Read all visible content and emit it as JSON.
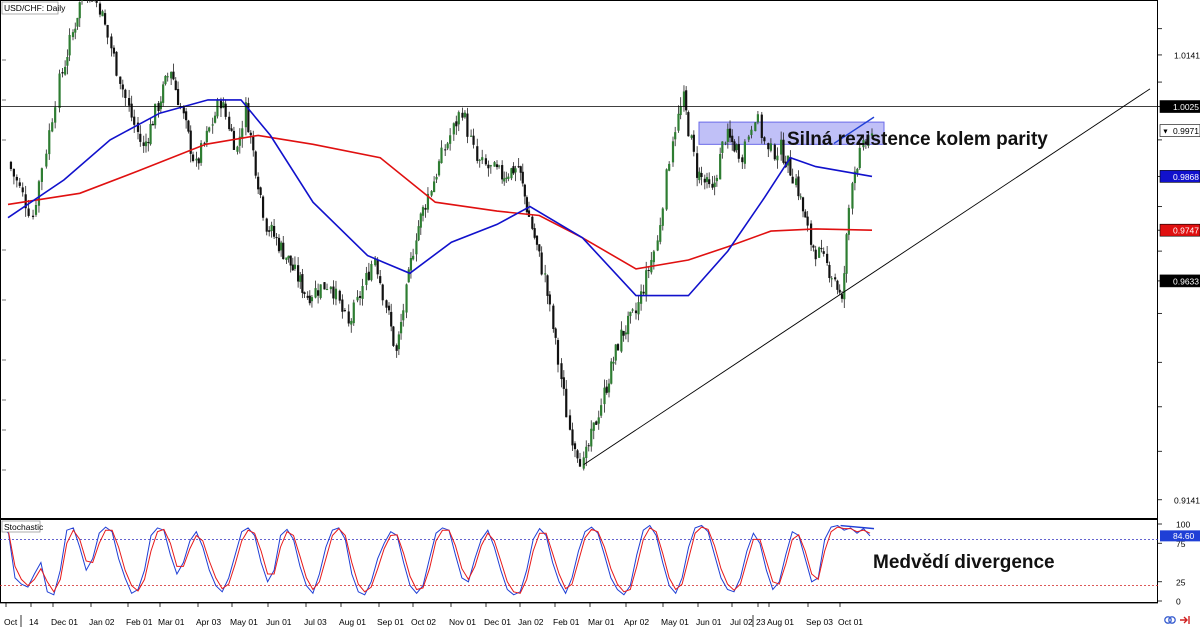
{
  "header": {
    "symbol_label": "USD/CHF: Daily"
  },
  "annotations": {
    "resistance": "Silná rezistence kolem parity",
    "divergence": "Medvědí divergence"
  },
  "colors": {
    "up_candle": "#2e7d32",
    "down_candle": "#111111",
    "sma_100": "#1111cc",
    "sma_200": "#e01010",
    "stoch_k": "#1f3fd6",
    "stoch_d": "#e81a1a",
    "resistance_zone": "#8c8cf0",
    "last_price_tag": "#000000"
  },
  "chart_data": [
    {
      "type": "candlestick",
      "title": "USD/CHF: Daily",
      "ylim": [
        0.91,
        1.026
      ],
      "price_axis_labels": [
        "1.0141",
        "1.0025",
        "0.9971",
        "0.9868",
        "0.9747",
        "0.9633",
        "0.9141"
      ],
      "price_tags": [
        {
          "label": "1.0025",
          "value": 1.0025,
          "role": "resistance",
          "color": "#000000",
          "text_color": "#ffffff"
        },
        {
          "label": "0.9971",
          "value": 0.9971,
          "role": "last price",
          "color": "#ffffff",
          "text_color": "#000000",
          "marker": "▼"
        },
        {
          "label": "0.9868",
          "value": 0.9868,
          "role": "SMA blue",
          "color": "#1111cc",
          "text_color": "#ffffff"
        },
        {
          "label": "0.9747",
          "value": 0.9747,
          "role": "SMA red",
          "color": "#e01010",
          "text_color": "#ffffff"
        },
        {
          "label": "0.9633",
          "value": 0.9633,
          "role": "support line",
          "color": "#000000",
          "text_color": "#ffffff"
        }
      ],
      "x_labels": [
        "Oct",
        "14",
        "Dec 01",
        "Jan 02",
        "Feb 01",
        "Mar 01",
        "Apr 03",
        "May 01",
        "Jun 01",
        "Jul 03",
        "Aug 01",
        "Sep 01",
        "Oct 02",
        "Nov 01",
        "Dec 01",
        "Jan 02",
        "Feb 01",
        "Mar 01",
        "Apr 02",
        "May 01",
        "Jun 01",
        "Jul 02",
        "23",
        "Aug 01",
        "Sep 03",
        "Oct 01"
      ],
      "price_keypoints": [
        {
          "date": "2016-10-24",
          "close": 0.99
        },
        {
          "date": "2016-11-10",
          "close": 0.978
        },
        {
          "date": "2016-11-28",
          "close": 1.008
        },
        {
          "date": "2016-12-20",
          "close": 1.03
        },
        {
          "date": "2017-01-02",
          "close": 1.025
        },
        {
          "date": "2017-01-25",
          "close": 1.002
        },
        {
          "date": "2017-02-06",
          "close": 0.993
        },
        {
          "date": "2017-03-02",
          "close": 1.011
        },
        {
          "date": "2017-03-24",
          "close": 0.989
        },
        {
          "date": "2017-04-14",
          "close": 1.004
        },
        {
          "date": "2017-04-28",
          "close": 0.993
        },
        {
          "date": "2017-05-05",
          "close": 1.002
        },
        {
          "date": "2017-05-22",
          "close": 0.976
        },
        {
          "date": "2017-06-08",
          "close": 0.969
        },
        {
          "date": "2017-06-28",
          "close": 0.96
        },
        {
          "date": "2017-07-17",
          "close": 0.963
        },
        {
          "date": "2017-07-31",
          "close": 0.953
        },
        {
          "date": "2017-08-21",
          "close": 0.969
        },
        {
          "date": "2017-09-08",
          "close": 0.947
        },
        {
          "date": "2017-09-26",
          "close": 0.974
        },
        {
          "date": "2017-10-20",
          "close": 0.993
        },
        {
          "date": "2017-11-03",
          "close": 1.002
        },
        {
          "date": "2017-11-15",
          "close": 0.99
        },
        {
          "date": "2017-12-06",
          "close": 0.987
        },
        {
          "date": "2017-12-22",
          "close": 0.989
        },
        {
          "date": "2018-01-15",
          "close": 0.964
        },
        {
          "date": "2018-02-05",
          "close": 0.93
        },
        {
          "date": "2018-02-16",
          "close": 0.922
        },
        {
          "date": "2018-03-05",
          "close": 0.938
        },
        {
          "date": "2018-03-20",
          "close": 0.951
        },
        {
          "date": "2018-04-02",
          "close": 0.956
        },
        {
          "date": "2018-04-19",
          "close": 0.972
        },
        {
          "date": "2018-05-01",
          "close": 0.996
        },
        {
          "date": "2018-05-11",
          "close": 1.004
        },
        {
          "date": "2018-05-23",
          "close": 0.988
        },
        {
          "date": "2018-06-06",
          "close": 0.983
        },
        {
          "date": "2018-06-18",
          "close": 0.996
        },
        {
          "date": "2018-07-03",
          "close": 0.992
        },
        {
          "date": "2018-07-13",
          "close": 1.001
        },
        {
          "date": "2018-07-23",
          "close": 0.992
        },
        {
          "date": "2018-08-02",
          "close": 0.993
        },
        {
          "date": "2018-08-15",
          "close": 0.986
        },
        {
          "date": "2018-08-28",
          "close": 0.972
        },
        {
          "date": "2018-09-18",
          "close": 0.964
        },
        {
          "date": "2018-09-24",
          "close": 0.958
        },
        {
          "date": "2018-10-03",
          "close": 0.987
        },
        {
          "date": "2018-10-12",
          "close": 0.993
        },
        {
          "date": "2018-10-19",
          "close": 0.9971
        }
      ],
      "sma_blue": [
        {
          "date": "2016-10-24",
          "value": 0.9775
        },
        {
          "date": "2016-12-01",
          "value": 0.986
        },
        {
          "date": "2017-01-10",
          "value": 0.995
        },
        {
          "date": "2017-02-20",
          "value": 1.001
        },
        {
          "date": "2017-04-03",
          "value": 1.004
        },
        {
          "date": "2017-05-01",
          "value": 1.004
        },
        {
          "date": "2017-05-25",
          "value": 0.996
        },
        {
          "date": "2017-07-03",
          "value": 0.981
        },
        {
          "date": "2017-08-15",
          "value": 0.969
        },
        {
          "date": "2017-09-20",
          "value": 0.965
        },
        {
          "date": "2017-10-25",
          "value": 0.972
        },
        {
          "date": "2017-12-01",
          "value": 0.976
        },
        {
          "date": "2018-01-02",
          "value": 0.98
        },
        {
          "date": "2018-02-15",
          "value": 0.973
        },
        {
          "date": "2018-04-02",
          "value": 0.96
        },
        {
          "date": "2018-05-15",
          "value": 0.96
        },
        {
          "date": "2018-06-20",
          "value": 0.97
        },
        {
          "date": "2018-07-20",
          "value": 0.982
        },
        {
          "date": "2018-08-10",
          "value": 0.991
        },
        {
          "date": "2018-09-01",
          "value": 0.989
        },
        {
          "date": "2018-10-19",
          "value": 0.9868
        }
      ],
      "sma_red": [
        {
          "date": "2016-10-24",
          "value": 0.9805
        },
        {
          "date": "2016-12-15",
          "value": 0.983
        },
        {
          "date": "2017-02-01",
          "value": 0.988
        },
        {
          "date": "2017-04-01",
          "value": 0.994
        },
        {
          "date": "2017-05-15",
          "value": 0.996
        },
        {
          "date": "2017-07-03",
          "value": 0.994
        },
        {
          "date": "2017-08-25",
          "value": 0.991
        },
        {
          "date": "2017-10-12",
          "value": 0.981
        },
        {
          "date": "2017-12-01",
          "value": 0.979
        },
        {
          "date": "2018-01-10",
          "value": 0.978
        },
        {
          "date": "2018-02-15",
          "value": 0.973
        },
        {
          "date": "2018-04-02",
          "value": 0.966
        },
        {
          "date": "2018-05-15",
          "value": 0.968
        },
        {
          "date": "2018-06-20",
          "value": 0.971
        },
        {
          "date": "2018-07-25",
          "value": 0.9745
        },
        {
          "date": "2018-09-01",
          "value": 0.975
        },
        {
          "date": "2018-10-19",
          "value": 0.9747
        }
      ],
      "resistance_level": 1.0025,
      "resistance_zone": {
        "from_date": "2018-06-01",
        "to_date": "2018-10-19",
        "low": 0.994,
        "high": 0.999
      },
      "support_trendline": [
        {
          "date": "2018-02-16",
          "value": 0.922
        },
        {
          "date": "2018-10-19",
          "value": 0.965
        }
      ],
      "price_divergence_line": [
        {
          "date": "2018-10-01",
          "value": 0.996
        },
        {
          "date": "2018-10-19",
          "value": 0.999
        }
      ]
    },
    {
      "type": "line",
      "title": "Stochastic",
      "ylim": [
        0,
        100
      ],
      "y_ticks": [
        "100",
        "75",
        "25",
        "0"
      ],
      "overbought": 80,
      "oversold": 20,
      "current_value_label": "84.60",
      "current_value": 84.6,
      "divergence_line": [
        {
          "date": "2018-09-21",
          "value": 98
        },
        {
          "date": "2018-10-19",
          "value": 94
        }
      ],
      "series": [
        {
          "values": [
            95,
            88,
            30,
            22,
            18,
            35,
            50,
            12,
            8,
            40,
            92,
            95,
            70,
            40,
            55,
            88,
            96,
            90,
            55,
            30,
            10,
            15,
            40,
            85,
            95,
            92,
            60,
            35,
            50,
            78,
            90,
            70,
            40,
            20,
            12,
            30,
            60,
            90,
            95,
            85,
            50,
            25,
            40,
            85,
            93,
            80,
            45,
            20,
            10,
            35,
            70,
            92,
            95,
            80,
            35,
            12,
            8,
            25,
            55,
            75,
            90,
            85,
            50,
            20,
            10,
            20,
            55,
            88,
            95,
            92,
            60,
            30,
            25,
            55,
            80,
            92,
            70,
            40,
            15,
            8,
            12,
            40,
            80,
            94,
            85,
            50,
            25,
            10,
            30,
            65,
            90,
            96,
            88,
            60,
            30,
            15,
            8,
            20,
            60,
            92,
            98,
            85,
            50,
            20,
            10,
            30,
            70,
            95,
            98,
            90,
            60,
            30,
            15,
            12,
            30,
            65,
            88,
            75,
            40,
            15,
            25,
            60,
            90,
            85,
            55,
            25,
            30,
            80,
            96,
            98,
            92,
            95,
            88,
            94,
            84.6
          ]
        },
        {
          "values": [
            92,
            90,
            45,
            28,
            20,
            28,
            42,
            25,
            12,
            28,
            75,
            92,
            80,
            52,
            50,
            75,
            92,
            92,
            70,
            40,
            20,
            13,
            28,
            65,
            90,
            93,
            75,
            45,
            45,
            68,
            85,
            78,
            52,
            30,
            16,
            22,
            48,
            78,
            92,
            88,
            65,
            35,
            35,
            70,
            90,
            85,
            58,
            30,
            15,
            25,
            55,
            85,
            94,
            85,
            50,
            22,
            12,
            18,
            42,
            68,
            85,
            86,
            62,
            32,
            15,
            17,
            42,
            78,
            92,
            92,
            72,
            42,
            28,
            45,
            72,
            88,
            78,
            52,
            25,
            12,
            10,
            28,
            65,
            88,
            88,
            62,
            35,
            16,
            22,
            52,
            82,
            93,
            90,
            70,
            42,
            22,
            12,
            15,
            45,
            80,
            95,
            90,
            62,
            30,
            15,
            22,
            55,
            88,
            96,
            93,
            72,
            42,
            22,
            14,
            22,
            52,
            80,
            80,
            52,
            25,
            22,
            48,
            80,
            86,
            65,
            35,
            28,
            65,
            90,
            96,
            94,
            94,
            90,
            92,
            88
          ]
        }
      ]
    }
  ]
}
